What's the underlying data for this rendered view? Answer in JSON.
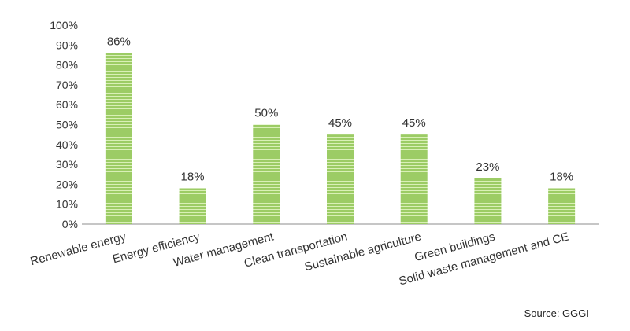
{
  "chart_data": {
    "type": "bar",
    "categories": [
      "Renewable energy",
      "Energy efficiency",
      "Water management",
      "Clean transportation",
      "Sustainable agriculture",
      "Green buildings",
      "Solid waste management and CE"
    ],
    "values": [
      86,
      18,
      50,
      45,
      45,
      23,
      18
    ],
    "data_labels": [
      "86%",
      "18%",
      "50%",
      "45%",
      "45%",
      "23%",
      "18%"
    ],
    "y_ticks": [
      "0%",
      "10%",
      "20%",
      "30%",
      "40%",
      "50%",
      "60%",
      "70%",
      "80%",
      "90%",
      "100%"
    ],
    "ylim": [
      0,
      100
    ],
    "grid": false,
    "colors": {
      "bar_fill": "#9ccc65",
      "bar_stripe": "#d9f0b7",
      "axis": "#8c8c8c",
      "text": "#333333"
    }
  },
  "source": "Source: GGGI"
}
